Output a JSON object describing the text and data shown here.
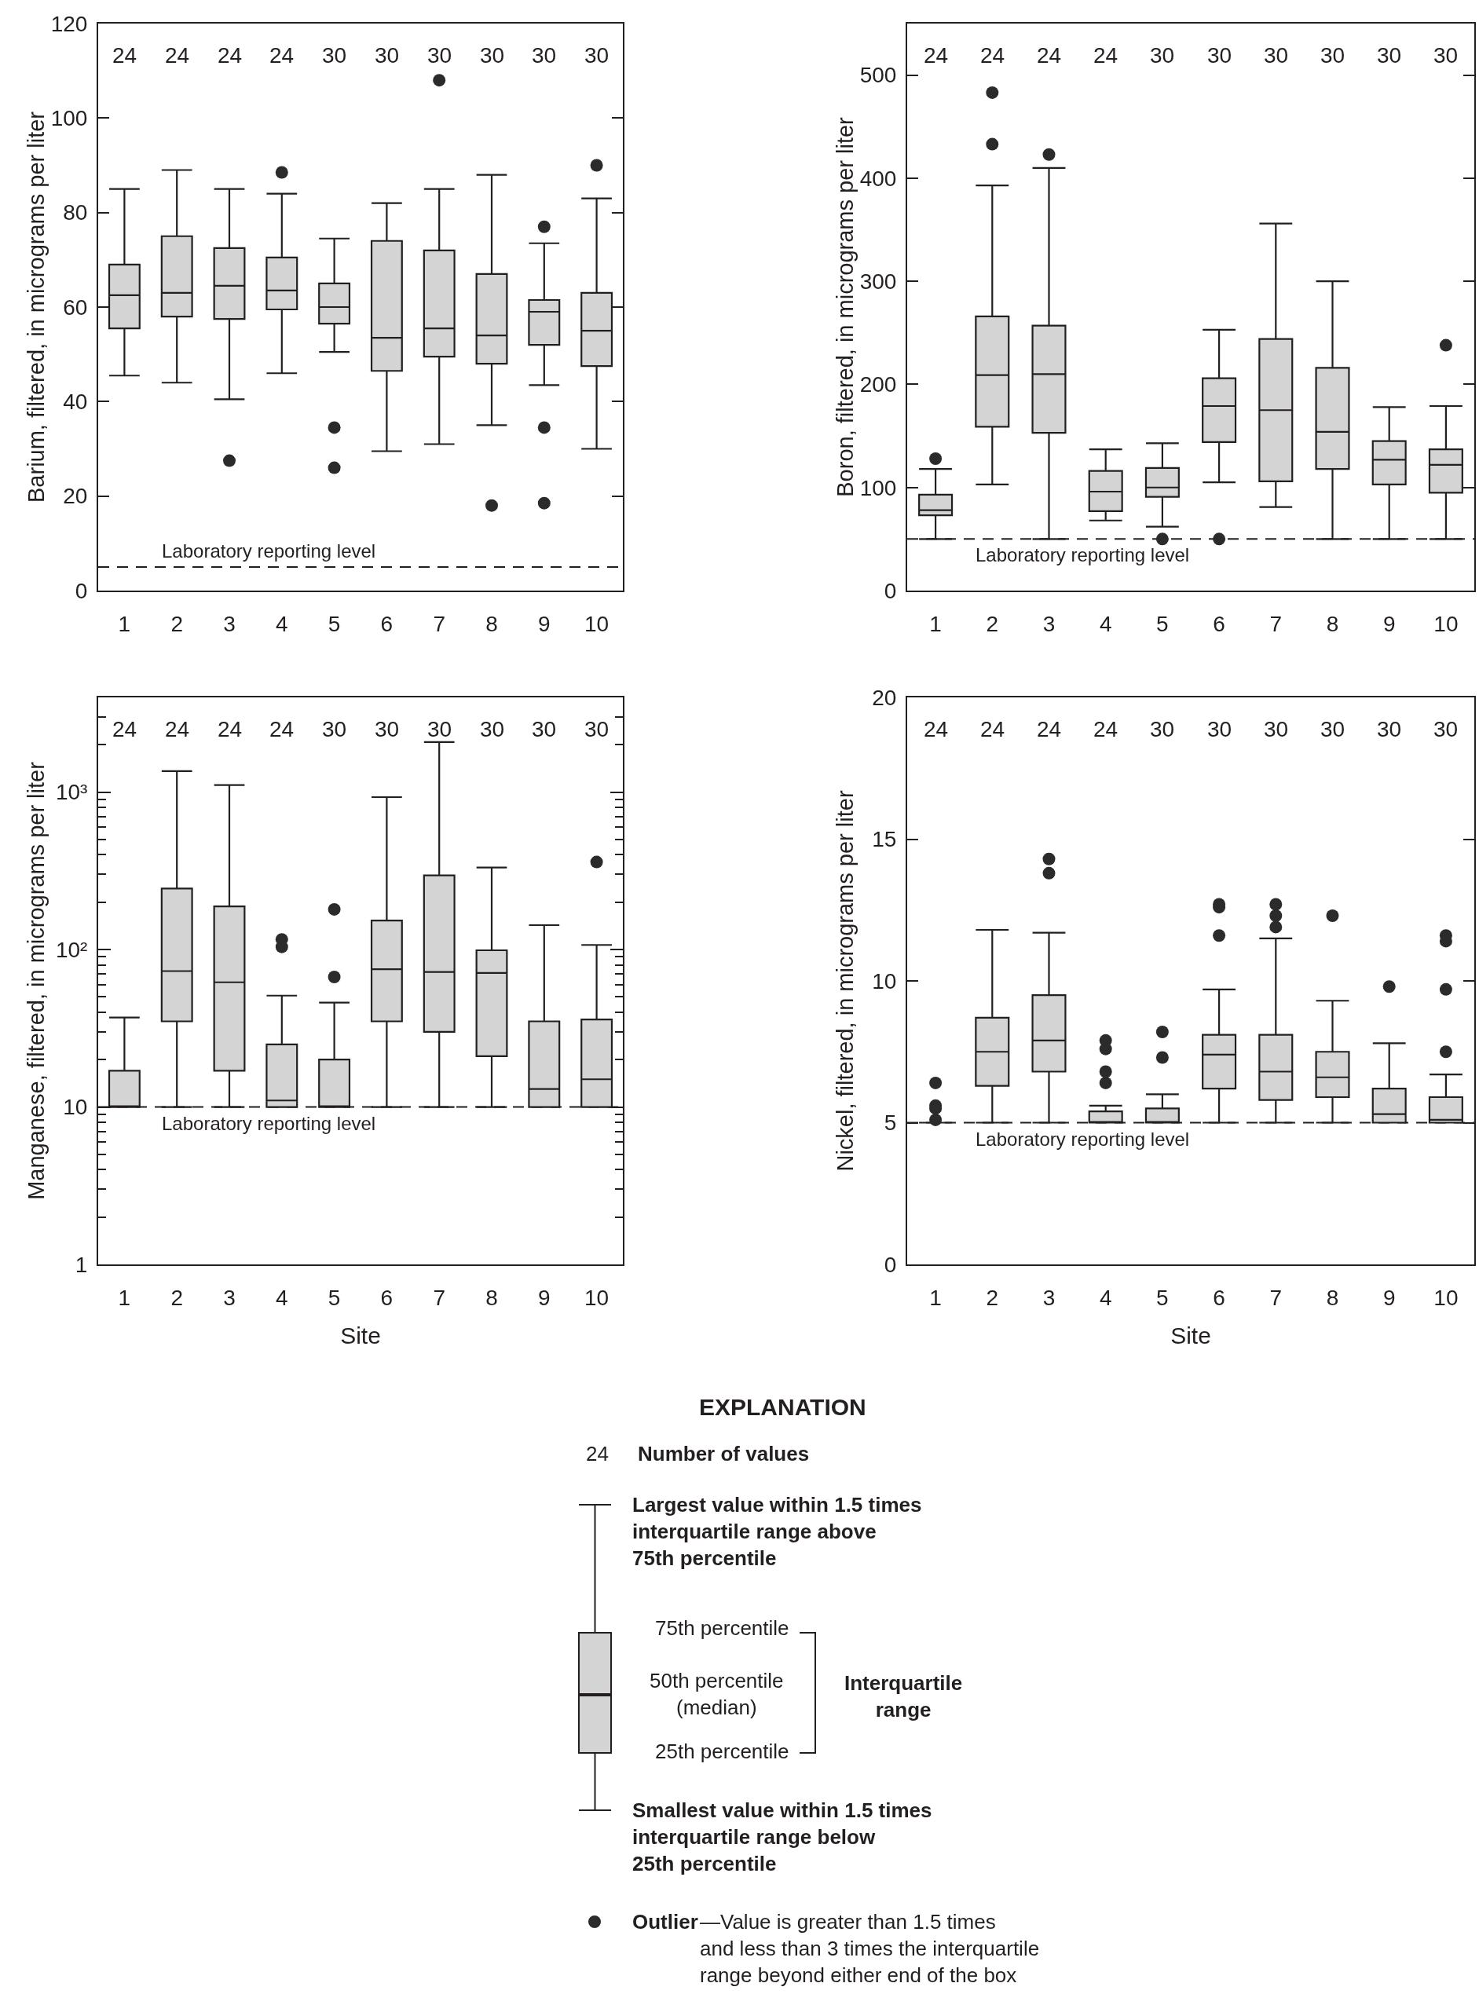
{
  "chart_data": [
    {
      "type": "box",
      "ylabel": "Barium, filtered, in micrograms per liter",
      "categories": [
        "1",
        "2",
        "3",
        "4",
        "5",
        "6",
        "7",
        "8",
        "9",
        "10"
      ],
      "marker": "circle",
      "ylim": [
        0,
        120
      ],
      "yticks": [
        0,
        20,
        40,
        60,
        80,
        100,
        120
      ],
      "series": [
        {
          "color": "#d4d4d4",
          "boxes": [
            {
              "low": 45.5,
              "q1": 55.5,
              "median": 62.5,
              "q3": 69,
              "high": 85
            },
            {
              "low": 44,
              "q1": 58,
              "median": 63,
              "q3": 75,
              "high": 89
            },
            {
              "low": 40.5,
              "q1": 57.5,
              "median": 64.5,
              "q3": 72.5,
              "high": 85,
              "outliers": [
                27.5
              ]
            },
            {
              "low": 46,
              "q1": 59.5,
              "median": 63.5,
              "q3": 70.5,
              "high": 84,
              "outliers": [
                88.5
              ]
            },
            {
              "low": 50.5,
              "q1": 56.5,
              "median": 60,
              "q3": 65,
              "high": 74.5,
              "outliers": [
                34.5,
                26
              ]
            },
            {
              "low": 29.5,
              "q1": 46.5,
              "median": 53.5,
              "q3": 74,
              "high": 82
            },
            {
              "low": 31,
              "q1": 49.5,
              "median": 55.5,
              "q3": 72,
              "high": 85,
              "outliers": [
                108
              ]
            },
            {
              "low": 35,
              "q1": 48,
              "median": 54,
              "q3": 67,
              "high": 88,
              "outliers": [
                18
              ]
            },
            {
              "low": 43.5,
              "q1": 52,
              "median": 59,
              "q3": 61.5,
              "high": 73.5,
              "outliers": [
                77,
                34.5,
                18.5
              ]
            },
            {
              "low": 30,
              "q1": 47.5,
              "median": 55,
              "q3": 63,
              "high": 83,
              "outliers": [
                90
              ]
            }
          ]
        }
      ],
      "ref_lines": [
        {
          "axis": "y",
          "value": 5,
          "label": "Laboratory reporting level",
          "line_style": "dashed",
          "color": "#231f20"
        }
      ],
      "annotations": [
        "24",
        "24",
        "24",
        "24",
        "30",
        "30",
        "30",
        "30",
        "30",
        "30"
      ]
    },
    {
      "type": "box",
      "ylabel": "Boron, filtered, in micrograms per liter",
      "categories": [
        "1",
        "2",
        "3",
        "4",
        "5",
        "6",
        "7",
        "8",
        "9",
        "10"
      ],
      "marker": "circle",
      "ylim": [
        0,
        550
      ],
      "yticks": [
        0,
        100,
        200,
        300,
        400,
        500
      ],
      "series": [
        {
          "color": "#d4d4d4",
          "boxes": [
            {
              "low": 50,
              "q1": 73,
              "median": 78,
              "q3": 93,
              "high": 118,
              "outliers": [
                128
              ]
            },
            {
              "low": 103,
              "q1": 159,
              "median": 209,
              "q3": 266,
              "high": 393,
              "outliers": [
                483,
                433
              ]
            },
            {
              "low": 50,
              "q1": 153,
              "median": 210,
              "q3": 257,
              "high": 410,
              "outliers": [
                423
              ]
            },
            {
              "low": 68,
              "q1": 77,
              "median": 96,
              "q3": 116,
              "high": 137
            },
            {
              "low": 62,
              "q1": 91,
              "median": 100,
              "q3": 119,
              "high": 143,
              "outliers": [
                50
              ]
            },
            {
              "low": 105,
              "q1": 144,
              "median": 179,
              "q3": 206,
              "high": 253,
              "outliers": [
                50
              ]
            },
            {
              "low": 81,
              "q1": 106,
              "median": 175,
              "q3": 244,
              "high": 356
            },
            {
              "low": 50,
              "q1": 118,
              "median": 154,
              "q3": 216,
              "high": 300
            },
            {
              "low": 50,
              "q1": 103,
              "median": 127,
              "q3": 145,
              "high": 178
            },
            {
              "low": 50,
              "q1": 95,
              "median": 122,
              "q3": 137,
              "high": 179,
              "outliers": [
                238
              ]
            }
          ]
        }
      ],
      "ref_lines": [
        {
          "axis": "y",
          "value": 50,
          "label": "Laboratory reporting level",
          "line_style": "dashed",
          "color": "#231f20"
        }
      ],
      "annotations": [
        "24",
        "24",
        "24",
        "24",
        "30",
        "30",
        "30",
        "30",
        "30",
        "30"
      ]
    },
    {
      "type": "box",
      "ylabel": "Manganese, filtered, in micrograms per liter",
      "xlabel": "Site",
      "categories": [
        "1",
        "2",
        "3",
        "4",
        "5",
        "6",
        "7",
        "8",
        "9",
        "10"
      ],
      "marker": "circle",
      "log": true,
      "ylim": [
        1,
        4000
      ],
      "yticks": [
        1,
        10,
        {
          "value": 100,
          "label": "10²"
        },
        {
          "value": 1000,
          "label": "10³"
        },
        {
          "value": 2,
          "label": null
        },
        {
          "value": 3,
          "label": null
        },
        {
          "value": 4,
          "label": null
        },
        {
          "value": 5,
          "label": null
        },
        {
          "value": 6,
          "label": null
        },
        {
          "value": 7,
          "label": null
        },
        {
          "value": 8,
          "label": null
        },
        {
          "value": 9,
          "label": null
        },
        {
          "value": 20,
          "label": null
        },
        {
          "value": 30,
          "label": null
        },
        {
          "value": 40,
          "label": null
        },
        {
          "value": 50,
          "label": null
        },
        {
          "value": 60,
          "label": null
        },
        {
          "value": 70,
          "label": null
        },
        {
          "value": 80,
          "label": null
        },
        {
          "value": 90,
          "label": null
        },
        {
          "value": 200,
          "label": null
        },
        {
          "value": 300,
          "label": null
        },
        {
          "value": 400,
          "label": null
        },
        {
          "value": 500,
          "label": null
        },
        {
          "value": 600,
          "label": null
        },
        {
          "value": 700,
          "label": null
        },
        {
          "value": 800,
          "label": null
        },
        {
          "value": 900,
          "label": null
        },
        {
          "value": 2000,
          "label": null
        },
        {
          "value": 3000,
          "label": null
        }
      ],
      "series": [
        {
          "color": "#d4d4d4",
          "boxes": [
            {
              "low": 10,
              "q1": 10,
              "median": 10,
              "q3": 17,
              "high": 37
            },
            {
              "low": 10,
              "q1": 35,
              "median": 73,
              "q3": 244,
              "high": 1360
            },
            {
              "low": 10,
              "q1": 17,
              "median": 62,
              "q3": 188,
              "high": 1110
            },
            {
              "low": 10,
              "q1": 10,
              "median": 11,
              "q3": 25,
              "high": 51,
              "outliers": [
                116,
                104
              ]
            },
            {
              "low": 10,
              "q1": 10,
              "median": 10,
              "q3": 20,
              "high": 46,
              "outliers": [
                180,
                67
              ]
            },
            {
              "low": 10,
              "q1": 35,
              "median": 75,
              "q3": 153,
              "high": 930
            },
            {
              "low": 10,
              "q1": 30,
              "median": 72,
              "q3": 296,
              "high": 2080
            },
            {
              "low": 10,
              "q1": 21,
              "median": 71,
              "q3": 99,
              "high": 332
            },
            {
              "low": 10,
              "q1": 10,
              "median": 13,
              "q3": 35,
              "high": 143
            },
            {
              "low": 10,
              "q1": 10,
              "median": 15,
              "q3": 36,
              "high": 107,
              "outliers": [
                360
              ]
            }
          ]
        }
      ],
      "ref_lines": [
        {
          "axis": "y",
          "value": 10,
          "label": "Laboratory reporting level",
          "line_style": "dashed",
          "color": "#231f20"
        }
      ],
      "annotations": [
        "24",
        "24",
        "24",
        "24",
        "30",
        "30",
        "30",
        "30",
        "30",
        "30"
      ]
    },
    {
      "type": "box",
      "ylabel": "Nickel, filtered, in micrograms per liter",
      "xlabel": "Site",
      "categories": [
        "1",
        "2",
        "3",
        "4",
        "5",
        "6",
        "7",
        "8",
        "9",
        "10"
      ],
      "marker": "circle",
      "ylim": [
        0,
        20
      ],
      "yticks": [
        0,
        5,
        10,
        15,
        20
      ],
      "series": [
        {
          "colors": [
            "#231f20",
            "#d4d4d4",
            "#d4d4d4",
            "#d4d4d4",
            "#d4d4d4",
            "#d4d4d4",
            "#d4d4d4",
            "#d4d4d4",
            "#d4d4d4",
            "#d4d4d4"
          ],
          "boxes": [
            {
              "low": 5,
              "q1": 5,
              "median": 5,
              "q3": 5,
              "high": 5,
              "outliers": [
                6.4,
                5.6,
                5.5,
                5.1
              ]
            },
            {
              "low": 5,
              "q1": 6.3,
              "median": 7.5,
              "q3": 8.7,
              "high": 11.8
            },
            {
              "low": 5,
              "q1": 6.8,
              "median": 7.9,
              "q3": 9.5,
              "high": 11.7,
              "outliers": [
                14.3,
                13.8
              ]
            },
            {
              "low": 5,
              "q1": 5,
              "median": 5,
              "q3": 5.4,
              "high": 5.6,
              "outliers": [
                7.9,
                7.6,
                6.8,
                6.4
              ]
            },
            {
              "low": 5,
              "q1": 5,
              "median": 5,
              "q3": 5.5,
              "high": 6,
              "outliers": [
                8.2,
                7.3
              ]
            },
            {
              "low": 5,
              "q1": 6.2,
              "median": 7.4,
              "q3": 8.1,
              "high": 9.7,
              "outliers": [
                12.7,
                12.6,
                11.6
              ]
            },
            {
              "low": 5,
              "q1": 5.8,
              "median": 6.8,
              "q3": 8.1,
              "high": 11.5,
              "outliers": [
                12.7,
                12.3,
                11.9
              ]
            },
            {
              "low": 5,
              "q1": 5.9,
              "median": 6.6,
              "q3": 7.5,
              "high": 9.3,
              "outliers": [
                12.3
              ]
            },
            {
              "low": 5,
              "q1": 5,
              "median": 5.3,
              "q3": 6.2,
              "high": 7.8,
              "outliers": [
                9.8
              ]
            },
            {
              "low": 5,
              "q1": 5,
              "median": 5.1,
              "q3": 5.9,
              "high": 6.7,
              "outliers": [
                11.6,
                11.4,
                9.7,
                7.5
              ]
            }
          ]
        }
      ],
      "ref_lines": [
        {
          "axis": "y",
          "value": 5,
          "label": "Laboratory reporting level",
          "line_style": "dashed",
          "color": "#231f20"
        }
      ],
      "annotations": [
        "24",
        "24",
        "24",
        "24",
        "30",
        "30",
        "30",
        "30",
        "30",
        "30"
      ]
    },
    {
      "type": "other",
      "title": "EXPLANATION",
      "annotations": [
        "24",
        "Number of values",
        "Largest value within 1.5 times\ninterquartile range above\n75th percentile",
        "75th percentile",
        "50th percentile\n(median)",
        "25th percentile",
        "Interquartile\nrange",
        "Smallest value within 1.5 times\ninterquartile range below\n25th percentile",
        "Outlier",
        "—Value is greater than 1.5 times\nand less than 3 times the interquartile\nrange beyond either end of the box"
      ]
    }
  ]
}
